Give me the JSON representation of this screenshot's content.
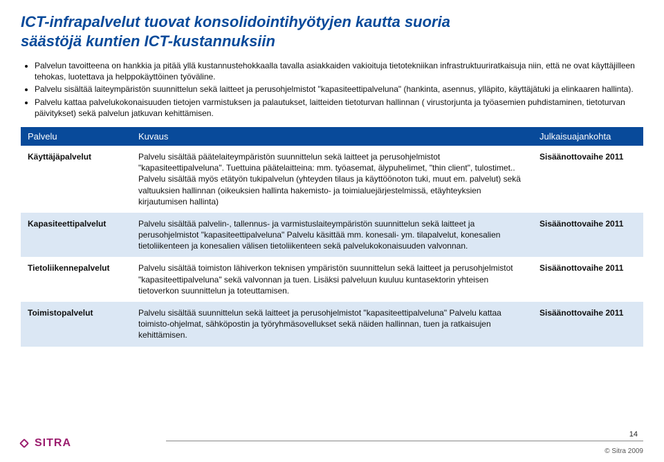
{
  "title_line1": "ICT-infrapalvelut tuovat konsolidointihyötyjen kautta suoria",
  "title_line2": "säästöjä kuntien ICT-kustannuksiin",
  "bullets": [
    "Palvelun tavoitteena on hankkia ja pitää yllä kustannustehokkaalla tavalla asiakkaiden vakioituja tietotekniikan infrastruktuuriratkaisuja niin, että ne ovat käyttäjilleen tehokas, luotettava ja helppokäyttöinen työväline.",
    "Palvelu sisältää laiteympäristön suunnittelun sekä laitteet ja perusohjelmistot \"kapasiteettipalveluna\" (hankinta, asennus, ylläpito, käyttäjätuki ja elinkaaren hallinta).",
    "Palvelu kattaa palvelukokonaisuuden tietojen varmistuksen ja palautukset, laitteiden tietoturvan hallinnan ( virustorjunta ja työasemien puhdistaminen, tietoturvan päivitykset) sekä palvelun jatkuvan kehittämisen."
  ],
  "table": {
    "headers": {
      "service": "Palvelu",
      "desc": "Kuvaus",
      "phase": "Julkaisuajankohta"
    },
    "rows": [
      {
        "name": "Käyttäjäpalvelut",
        "desc": "Palvelu sisältää päätelaiteympäristön suunnittelun sekä laitteet ja perusohjelmistot \"kapasiteettipalveluna\". Tuettuina päätelaitteina: mm. työasemat, älypuhelimet, \"thin client\", tulostimet.. Palvelu sisältää myös etätyön tukipalvelun (yhteyden tilaus ja käyttöönoton tuki, muut em. palvelut) sekä valtuuksien hallinnan (oikeuksien hallinta hakemisto- ja toimialuejärjestelmissä, etäyhteyksien kirjautumisen hallinta)",
        "phase": "Sisäänottovaihe 2011",
        "alt": false
      },
      {
        "name": "Kapasiteettipalvelut",
        "desc": "Palvelu sisältää palvelin-, tallennus- ja varmistuslaiteympäristön suunnittelun sekä laitteet ja perusohjelmistot \"kapasiteettipalveluna\" Palvelu käsittää mm. konesali- ym. tilapalvelut, konesalien tietoliikenteen ja konesalien välisen tietoliikenteen sekä palvelukokonaisuuden valvonnan.",
        "phase": "Sisäänottovaihe 2011",
        "alt": true
      },
      {
        "name": "Tietoliikennepalvelut",
        "desc": "Palvelu sisältää toimiston lähiverkon teknisen ympäristön suunnittelun sekä laitteet ja perusohjelmistot \"kapasiteettipalveluna\" sekä valvonnan ja tuen. Lisäksi palveluun kuuluu kuntasektorin yhteisen tietoverkon suunnittelun ja toteuttamisen.",
        "phase": "Sisäänottovaihe 2011",
        "alt": false
      },
      {
        "name": "Toimistopalvelut",
        "desc": "Palvelu sisältää suunnittelun sekä laitteet ja perusohjelmistot \"kapasiteettipalveluna\"  Palvelu kattaa toimisto-ohjelmat, sähköpostin ja työryhmäsovellukset sekä näiden hallinnan, tuen ja ratkaisujen kehittämisen.",
        "phase": "Sisäänottovaihe 2011",
        "alt": true
      }
    ]
  },
  "footer": {
    "logo_text": "SITRA",
    "page_number": "14",
    "copyright": "© Sitra 2009"
  },
  "colors": {
    "brand_blue": "#084a9a",
    "row_alt_bg": "#dbe7f4",
    "logo_magenta": "#9b1d6e"
  }
}
